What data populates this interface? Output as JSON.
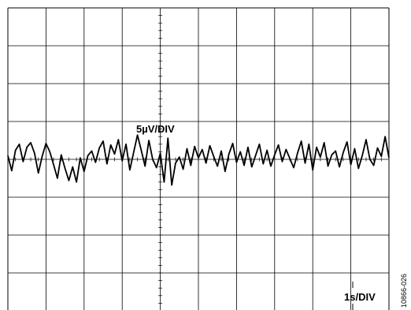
{
  "chart_data": {
    "type": "line",
    "title": "",
    "xlabel": "",
    "ylabel": "",
    "grid": true,
    "divisions": {
      "x": 10,
      "y": 8
    },
    "scale_labels": {
      "vertical": "5µV/DIV",
      "horizontal": "1s/DIV"
    },
    "x_unit": "s",
    "y_unit": "µV",
    "xlim": [
      0,
      10
    ],
    "ylim": [
      -20,
      20
    ],
    "series": [
      {
        "color": "#000000",
        "x": [
          0,
          0.1,
          0.2,
          0.3,
          0.4,
          0.5,
          0.6,
          0.7,
          0.8,
          0.9,
          1.0,
          1.1,
          1.2,
          1.3,
          1.4,
          1.5,
          1.6,
          1.7,
          1.8,
          1.9,
          2.0,
          2.1,
          2.2,
          2.3,
          2.4,
          2.5,
          2.6,
          2.7,
          2.8,
          2.9,
          3.0,
          3.1,
          3.2,
          3.3,
          3.4,
          3.5,
          3.6,
          3.7,
          3.8,
          3.9,
          4.0,
          4.1,
          4.2,
          4.3,
          4.4,
          4.5,
          4.6,
          4.7,
          4.8,
          4.9,
          5.0,
          5.1,
          5.2,
          5.3,
          5.4,
          5.5,
          5.6,
          5.7,
          5.8,
          5.9,
          6.0,
          6.1,
          6.2,
          6.3,
          6.4,
          6.5,
          6.6,
          6.7,
          6.8,
          6.9,
          7.0,
          7.1,
          7.2,
          7.3,
          7.4,
          7.5,
          7.6,
          7.7,
          7.8,
          7.9,
          8.0,
          8.1,
          8.2,
          8.3,
          8.4,
          8.5,
          8.6,
          8.7,
          8.8,
          8.9,
          9.0,
          9.1,
          9.2,
          9.3,
          9.4,
          9.5,
          9.6,
          9.7,
          9.8,
          9.9,
          10.0
        ],
        "y": [
          0.5,
          -1.5,
          1.2,
          2.0,
          -0.3,
          1.6,
          2.2,
          0.8,
          -1.8,
          0.4,
          2.1,
          1.0,
          -0.7,
          -2.5,
          0.6,
          -1.2,
          -2.8,
          -1.0,
          -3.0,
          0.2,
          -1.6,
          0.5,
          1.1,
          -0.4,
          1.5,
          2.4,
          -0.6,
          1.9,
          0.7,
          2.6,
          -0.2,
          2.0,
          -1.4,
          0.9,
          3.2,
          1.2,
          -0.9,
          2.5,
          0.0,
          -1.1,
          0.8,
          -3.0,
          2.8,
          -3.4,
          -0.5,
          0.3,
          -1.3,
          1.4,
          -0.8,
          1.7,
          0.2,
          1.3,
          -0.5,
          1.8,
          0.4,
          -0.9,
          1.1,
          -1.6,
          0.7,
          2.1,
          -0.4,
          1.0,
          -0.8,
          1.6,
          -1.0,
          0.5,
          2.0,
          -0.6,
          1.2,
          -0.9,
          0.6,
          1.9,
          -0.3,
          1.3,
          0.1,
          -1.1,
          0.8,
          2.4,
          -0.5,
          2.0,
          -1.4,
          1.6,
          0.3,
          2.2,
          -0.9,
          0.6,
          1.1,
          -1.0,
          0.9,
          2.3,
          -0.7,
          1.4,
          -1.2,
          0.5,
          2.6,
          0.0,
          -0.8,
          1.5,
          0.4,
          3.0,
          0.2
        ]
      }
    ]
  },
  "footer": {
    "figure_code": "10866-026"
  }
}
